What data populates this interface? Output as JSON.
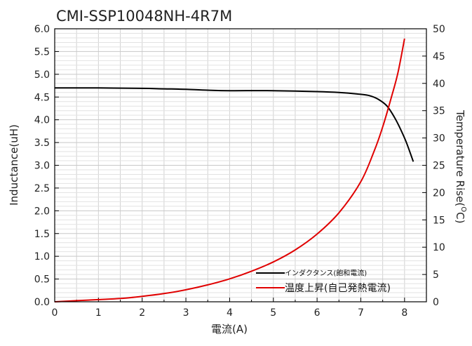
{
  "chart_data": {
    "type": "line",
    "title": "CMI-SSP10048NH-4R7M",
    "xlabel": "電流(A)",
    "ylabel_left": "Inductance(uH)",
    "ylabel_right_main": "Temperature Rise(",
    "ylabel_right_sup": "O",
    "ylabel_right_end": "C)",
    "xlim": [
      0,
      8.5
    ],
    "ylim_left": [
      0,
      6.0
    ],
    "ylim_right": [
      0,
      50
    ],
    "x_ticks": [
      "0",
      "1",
      "2",
      "3",
      "4",
      "5",
      "6",
      "7",
      "8"
    ],
    "y_left_ticks": [
      "0.0",
      "0.5",
      "1.0",
      "1.5",
      "2.0",
      "2.5",
      "3.0",
      "3.5",
      "4.0",
      "4.5",
      "5.0",
      "5.5",
      "6.0"
    ],
    "y_right_ticks": [
      "0",
      "5",
      "10",
      "15",
      "20",
      "25",
      "30",
      "35",
      "40",
      "45",
      "50"
    ],
    "grid": true,
    "legend_position": "bottom-right",
    "series": [
      {
        "name": "インダクタンス(飽和電流)",
        "axis": "left",
        "color": "#000000",
        "points": [
          [
            0,
            4.7
          ],
          [
            1,
            4.7
          ],
          [
            2,
            4.69
          ],
          [
            2.5,
            4.68
          ],
          [
            3,
            4.67
          ],
          [
            3.5,
            4.65
          ],
          [
            4,
            4.64
          ],
          [
            5,
            4.64
          ],
          [
            6,
            4.62
          ],
          [
            6.5,
            4.6
          ],
          [
            7,
            4.56
          ],
          [
            7.2,
            4.53
          ],
          [
            7.4,
            4.45
          ],
          [
            7.6,
            4.3
          ],
          [
            7.8,
            4.0
          ],
          [
            8.0,
            3.6
          ],
          [
            8.1,
            3.35
          ],
          [
            8.2,
            3.08
          ]
        ]
      },
      {
        "name": "温度上昇(自己発熱電流)",
        "axis": "right",
        "color": "#e00000",
        "points": [
          [
            0,
            0
          ],
          [
            0.5,
            0.2
          ],
          [
            1,
            0.4
          ],
          [
            1.5,
            0.6
          ],
          [
            2,
            1.0
          ],
          [
            2.5,
            1.5
          ],
          [
            3,
            2.2
          ],
          [
            3.5,
            3.1
          ],
          [
            4,
            4.2
          ],
          [
            4.5,
            5.6
          ],
          [
            5,
            7.3
          ],
          [
            5.5,
            9.5
          ],
          [
            6,
            12.4
          ],
          [
            6.5,
            16.3
          ],
          [
            7,
            22.0
          ],
          [
            7.3,
            27.5
          ],
          [
            7.5,
            32.0
          ],
          [
            7.7,
            37.5
          ],
          [
            7.85,
            42.0
          ],
          [
            8.0,
            48.2
          ]
        ]
      }
    ]
  }
}
